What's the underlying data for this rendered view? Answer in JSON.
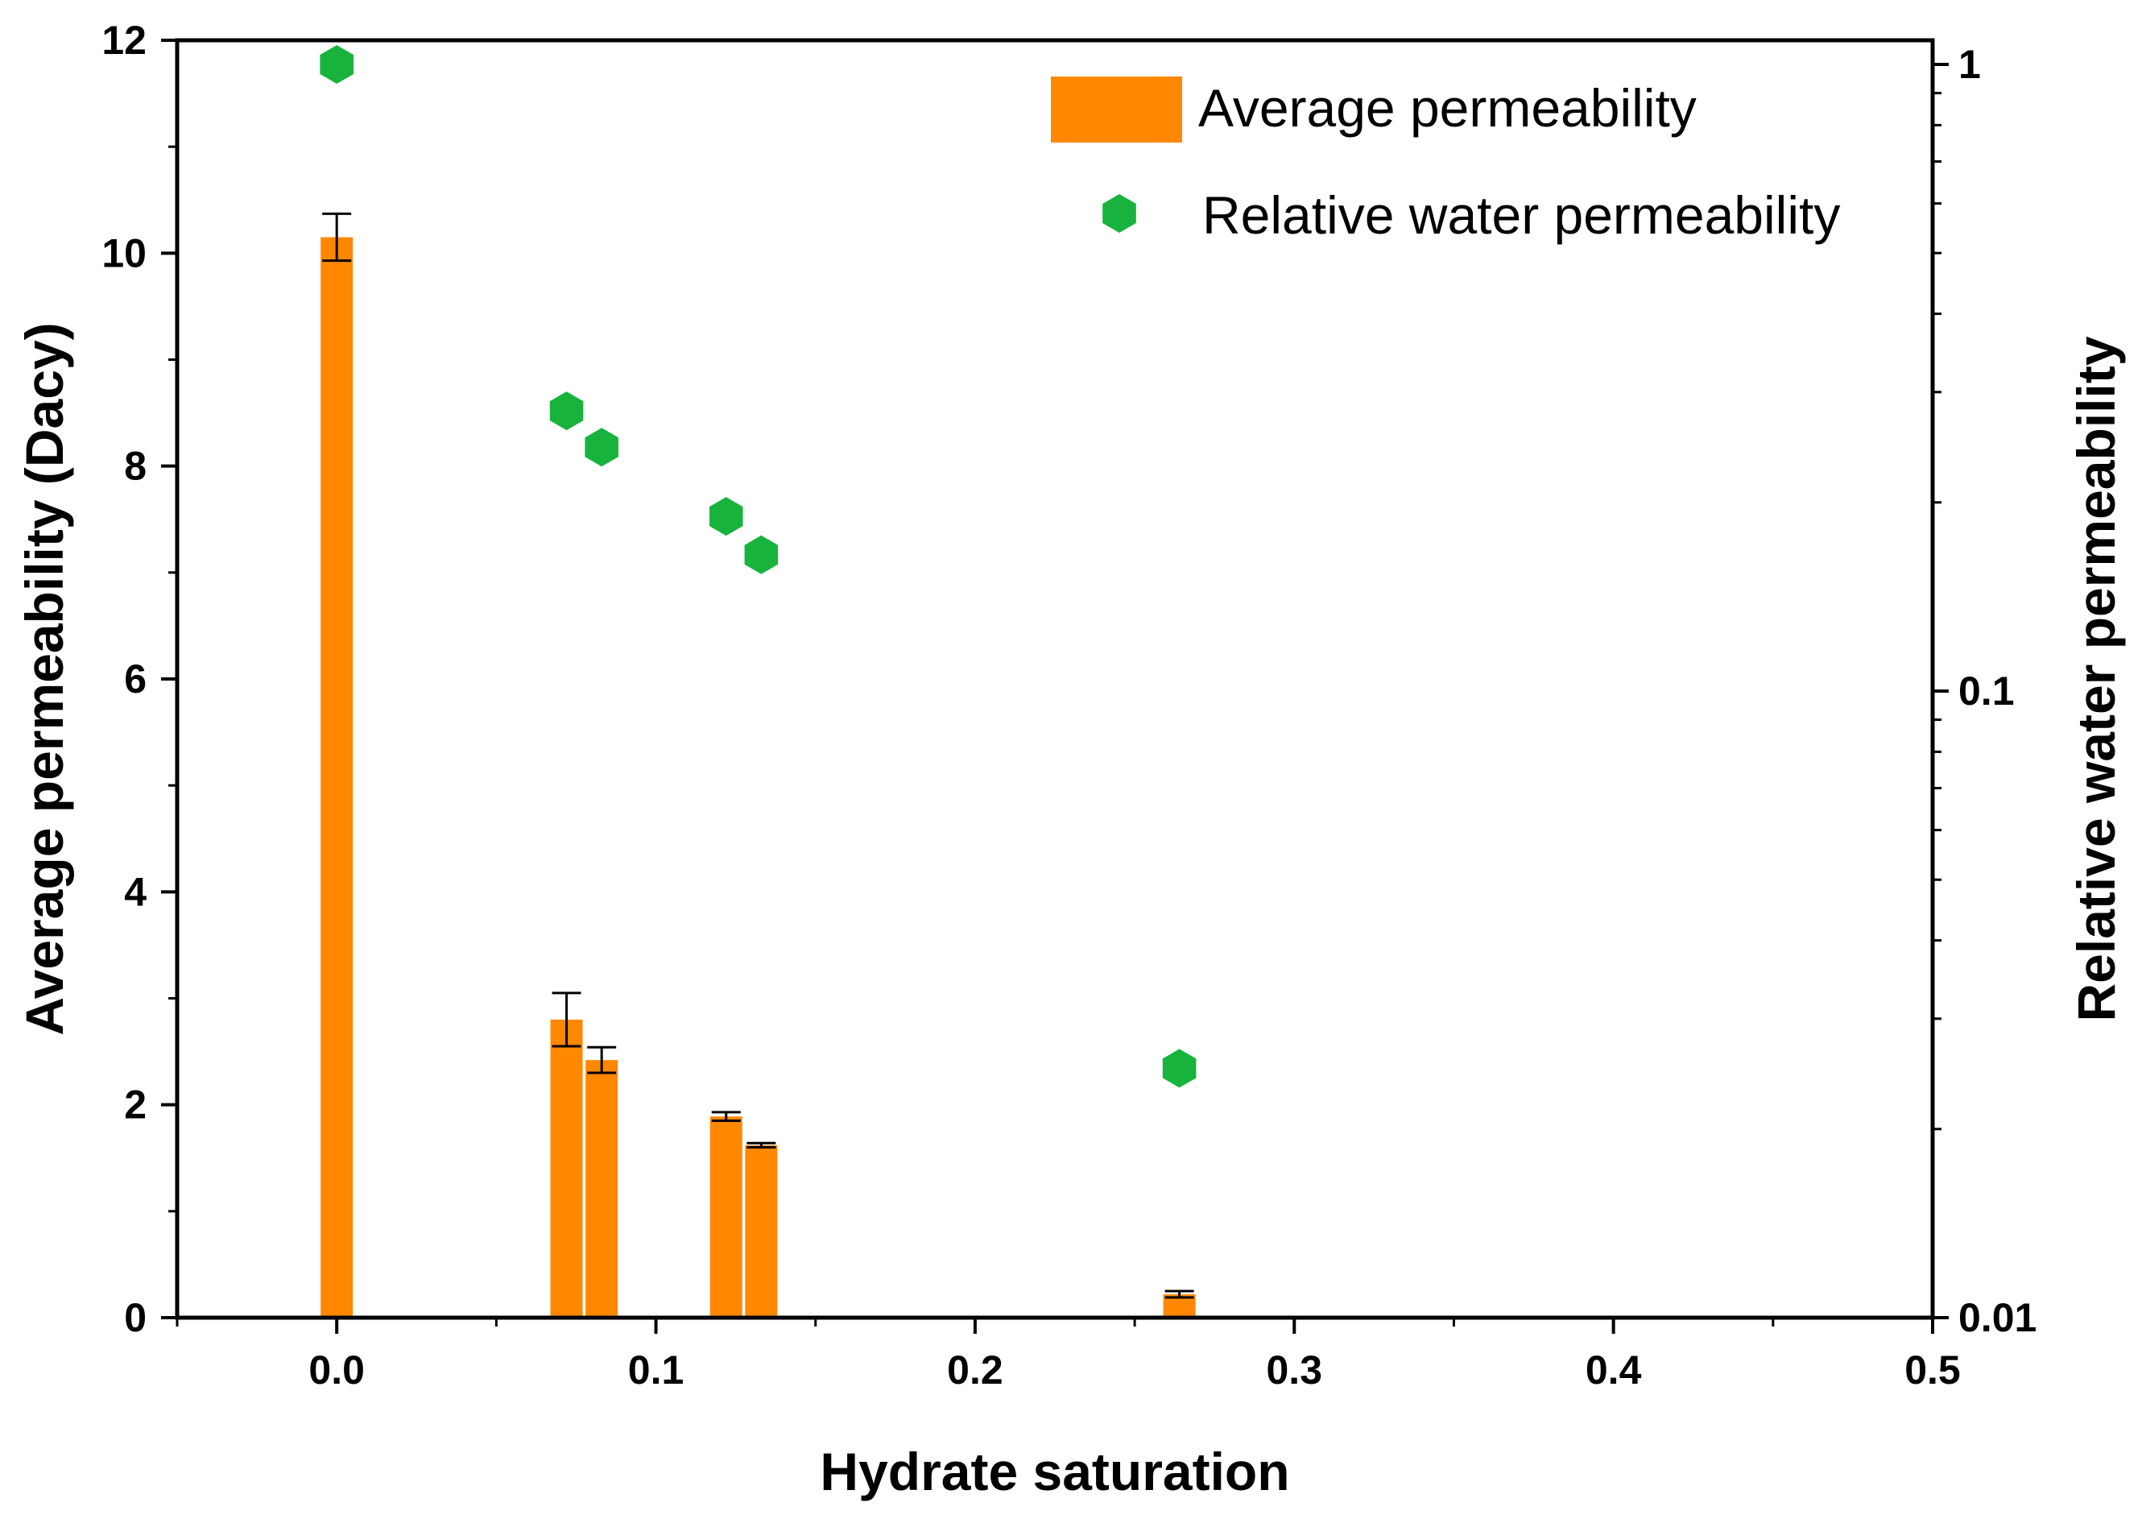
{
  "chart_data": {
    "type": "bar",
    "xlabel": "Hydrate saturation",
    "ylabel_left": "Average permeability (Dacy)",
    "ylabel_right": "Relative water permeability",
    "xlim": [
      -0.05,
      0.5
    ],
    "ylim_left": [
      0,
      12
    ],
    "ylim_right": [
      0.01,
      1.0
    ],
    "right_scale": "log",
    "grid": false,
    "legend_position": "top-right",
    "x_ticks": [
      {
        "value": 0.0,
        "label": "0.0"
      },
      {
        "value": 0.1,
        "label": "0.1"
      },
      {
        "value": 0.2,
        "label": "0.2"
      },
      {
        "value": 0.3,
        "label": "0.3"
      },
      {
        "value": 0.4,
        "label": "0.4"
      },
      {
        "value": 0.5,
        "label": "0.5"
      }
    ],
    "y_left_ticks": [
      {
        "value": 0,
        "label": "0"
      },
      {
        "value": 2,
        "label": "2"
      },
      {
        "value": 4,
        "label": "4"
      },
      {
        "value": 6,
        "label": "6"
      },
      {
        "value": 8,
        "label": "8"
      },
      {
        "value": 10,
        "label": "10"
      },
      {
        "value": 12,
        "label": "12"
      }
    ],
    "y_right_ticks": [
      {
        "value": 0.01,
        "label": "0.01"
      },
      {
        "value": 0.1,
        "label": "0.1"
      },
      {
        "value": 1,
        "label": "1"
      }
    ],
    "series": [
      {
        "name": "Average permeability",
        "kind": "bar",
        "axis": "left",
        "color": "#ff8800",
        "points": [
          {
            "x": 0.0,
            "y": 10.15,
            "err": 0.22
          },
          {
            "x": 0.072,
            "y": 2.8,
            "err": 0.25
          },
          {
            "x": 0.083,
            "y": 2.42,
            "err": 0.12
          },
          {
            "x": 0.122,
            "y": 1.89,
            "err": 0.04
          },
          {
            "x": 0.133,
            "y": 1.62,
            "err": 0.02
          },
          {
            "x": 0.264,
            "y": 0.22,
            "err": 0.03
          }
        ]
      },
      {
        "name": "Relative water permeability",
        "kind": "scatter",
        "axis": "right",
        "color": "#17b33c",
        "marker": "hexagon",
        "points": [
          {
            "x": 0.0,
            "y": 1.0
          },
          {
            "x": 0.072,
            "y": 0.28
          },
          {
            "x": 0.083,
            "y": 0.245
          },
          {
            "x": 0.122,
            "y": 0.19
          },
          {
            "x": 0.133,
            "y": 0.165
          },
          {
            "x": 0.264,
            "y": 0.025
          }
        ]
      }
    ]
  }
}
